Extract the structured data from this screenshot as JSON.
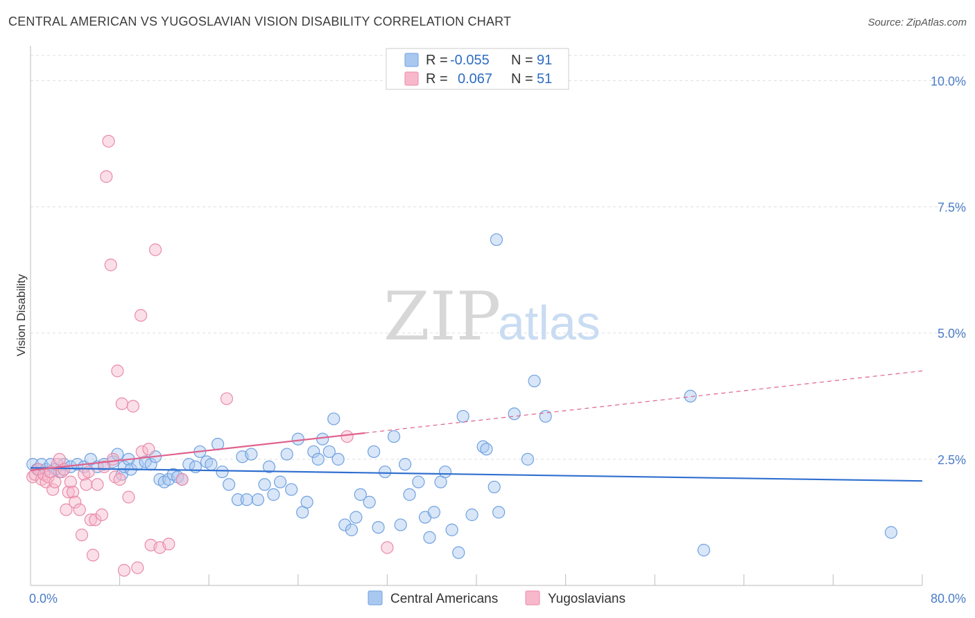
{
  "title": "CENTRAL AMERICAN VS YUGOSLAVIAN VISION DISABILITY CORRELATION CHART",
  "source": "Source: ZipAtlas.com",
  "watermark": {
    "part1": "ZIP",
    "part2": "atlas"
  },
  "legend_top": [
    {
      "r_label": "R =",
      "r_value": "-0.055",
      "n_label": "N =",
      "n_value": "91",
      "color": "#a9c8f0"
    },
    {
      "r_label": "R =",
      "r_value": " 0.067",
      "n_label": "N =",
      "n_value": "51",
      "color": "#f7b8cb"
    }
  ],
  "legend_bottom": [
    "Central Americans",
    "Yugoslavians"
  ],
  "chart_data": {
    "type": "scatter",
    "ylabel": "Vision Disability",
    "xlim": [
      0,
      80
    ],
    "ylim": [
      0,
      10.5
    ],
    "x_tick_labels": [
      "0.0%",
      "80.0%"
    ],
    "y_ticks": [
      2.5,
      5.0,
      7.5,
      10.0
    ],
    "y_tick_labels": [
      "2.5%",
      "5.0%",
      "7.5%",
      "10.0%"
    ],
    "grid": true,
    "series": [
      {
        "name": "Central Americans",
        "color": "#6fa1e0",
        "fill": "#a9c8f0",
        "trend": {
          "x": [
            0,
            80
          ],
          "y": [
            2.33,
            2.07
          ]
        },
        "points": [
          [
            0.2,
            2.4
          ],
          [
            0.6,
            2.3
          ],
          [
            1.0,
            2.4
          ],
          [
            1.4,
            2.3
          ],
          [
            1.8,
            2.4
          ],
          [
            2.2,
            2.3
          ],
          [
            2.6,
            2.25
          ],
          [
            3.0,
            2.4
          ],
          [
            3.6,
            2.35
          ],
          [
            4.2,
            2.4
          ],
          [
            4.8,
            2.35
          ],
          [
            5.4,
            2.5
          ],
          [
            6.0,
            2.35
          ],
          [
            6.6,
            2.4
          ],
          [
            7.4,
            2.45
          ],
          [
            7.8,
            2.6
          ],
          [
            8.2,
            2.2
          ],
          [
            8.4,
            2.35
          ],
          [
            8.8,
            2.5
          ],
          [
            9.0,
            2.3
          ],
          [
            9.6,
            2.4
          ],
          [
            10.3,
            2.45
          ],
          [
            10.8,
            2.4
          ],
          [
            11.2,
            2.55
          ],
          [
            11.6,
            2.1
          ],
          [
            12.0,
            2.05
          ],
          [
            12.4,
            2.1
          ],
          [
            12.8,
            2.2
          ],
          [
            13.2,
            2.15
          ],
          [
            13.6,
            2.1
          ],
          [
            14.2,
            2.4
          ],
          [
            14.8,
            2.35
          ],
          [
            15.2,
            2.65
          ],
          [
            15.8,
            2.45
          ],
          [
            16.2,
            2.4
          ],
          [
            16.8,
            2.8
          ],
          [
            17.2,
            2.25
          ],
          [
            17.8,
            2.0
          ],
          [
            18.6,
            1.7
          ],
          [
            19.0,
            2.55
          ],
          [
            19.4,
            1.7
          ],
          [
            19.8,
            2.6
          ],
          [
            20.4,
            1.7
          ],
          [
            21.0,
            2.0
          ],
          [
            21.4,
            2.35
          ],
          [
            21.8,
            1.8
          ],
          [
            22.4,
            2.05
          ],
          [
            23.0,
            2.6
          ],
          [
            23.4,
            1.9
          ],
          [
            24.0,
            2.9
          ],
          [
            24.4,
            1.45
          ],
          [
            24.8,
            1.65
          ],
          [
            25.4,
            2.65
          ],
          [
            25.8,
            2.5
          ],
          [
            26.2,
            2.9
          ],
          [
            26.8,
            2.65
          ],
          [
            27.2,
            3.3
          ],
          [
            27.6,
            2.5
          ],
          [
            28.2,
            1.2
          ],
          [
            28.8,
            1.1
          ],
          [
            29.2,
            1.35
          ],
          [
            29.6,
            1.8
          ],
          [
            30.4,
            1.65
          ],
          [
            30.8,
            2.65
          ],
          [
            31.2,
            1.15
          ],
          [
            31.8,
            2.25
          ],
          [
            32.6,
            2.95
          ],
          [
            33.2,
            1.2
          ],
          [
            33.6,
            2.4
          ],
          [
            34.0,
            1.8
          ],
          [
            34.8,
            2.05
          ],
          [
            35.4,
            1.35
          ],
          [
            35.8,
            0.95
          ],
          [
            36.2,
            1.45
          ],
          [
            36.8,
            2.05
          ],
          [
            37.2,
            2.25
          ],
          [
            37.8,
            1.1
          ],
          [
            38.4,
            0.65
          ],
          [
            38.8,
            3.35
          ],
          [
            39.6,
            1.4
          ],
          [
            40.6,
            2.75
          ],
          [
            40.9,
            2.7
          ],
          [
            41.6,
            1.95
          ],
          [
            41.8,
            6.85
          ],
          [
            42.0,
            1.45
          ],
          [
            43.4,
            3.4
          ],
          [
            45.2,
            4.05
          ],
          [
            44.6,
            2.5
          ],
          [
            46.2,
            3.35
          ],
          [
            59.2,
            3.75
          ],
          [
            60.4,
            0.7
          ],
          [
            77.2,
            1.05
          ]
        ]
      },
      {
        "name": "Yugoslavians",
        "color": "#e98aa8",
        "fill": "#f7b8cb",
        "trend": {
          "x": [
            0,
            30
          ],
          "y": [
            2.28,
            3.02
          ]
        },
        "trend_dashed": {
          "x": [
            30,
            80
          ],
          "y": [
            3.02,
            4.25
          ]
        },
        "points": [
          [
            0.2,
            2.15
          ],
          [
            0.4,
            2.2
          ],
          [
            0.7,
            2.3
          ],
          [
            1.0,
            2.1
          ],
          [
            1.2,
            2.2
          ],
          [
            1.4,
            2.05
          ],
          [
            1.6,
            2.15
          ],
          [
            1.8,
            2.25
          ],
          [
            2.0,
            1.9
          ],
          [
            2.2,
            2.05
          ],
          [
            2.4,
            2.4
          ],
          [
            2.6,
            2.5
          ],
          [
            2.8,
            2.25
          ],
          [
            3.0,
            2.3
          ],
          [
            3.2,
            1.5
          ],
          [
            3.4,
            1.85
          ],
          [
            3.6,
            2.05
          ],
          [
            3.8,
            1.85
          ],
          [
            4.0,
            1.65
          ],
          [
            4.4,
            1.5
          ],
          [
            4.6,
            1.0
          ],
          [
            4.8,
            2.2
          ],
          [
            5.0,
            2.0
          ],
          [
            5.2,
            2.25
          ],
          [
            5.4,
            1.3
          ],
          [
            5.6,
            0.6
          ],
          [
            5.8,
            1.3
          ],
          [
            6.0,
            2.0
          ],
          [
            6.4,
            1.4
          ],
          [
            6.6,
            2.35
          ],
          [
            6.8,
            8.1
          ],
          [
            7.0,
            8.8
          ],
          [
            7.2,
            6.35
          ],
          [
            7.4,
            2.5
          ],
          [
            7.6,
            2.15
          ],
          [
            7.8,
            4.25
          ],
          [
            8.0,
            2.1
          ],
          [
            8.2,
            3.6
          ],
          [
            8.4,
            0.3
          ],
          [
            8.8,
            1.75
          ],
          [
            9.2,
            3.55
          ],
          [
            9.6,
            0.35
          ],
          [
            9.9,
            5.35
          ],
          [
            10.0,
            2.65
          ],
          [
            10.6,
            2.7
          ],
          [
            10.8,
            0.8
          ],
          [
            11.2,
            6.65
          ],
          [
            11.6,
            0.75
          ],
          [
            12.4,
            0.82
          ],
          [
            13.6,
            2.1
          ],
          [
            17.6,
            3.7
          ],
          [
            28.4,
            2.95
          ],
          [
            32.0,
            0.75
          ]
        ]
      }
    ]
  }
}
